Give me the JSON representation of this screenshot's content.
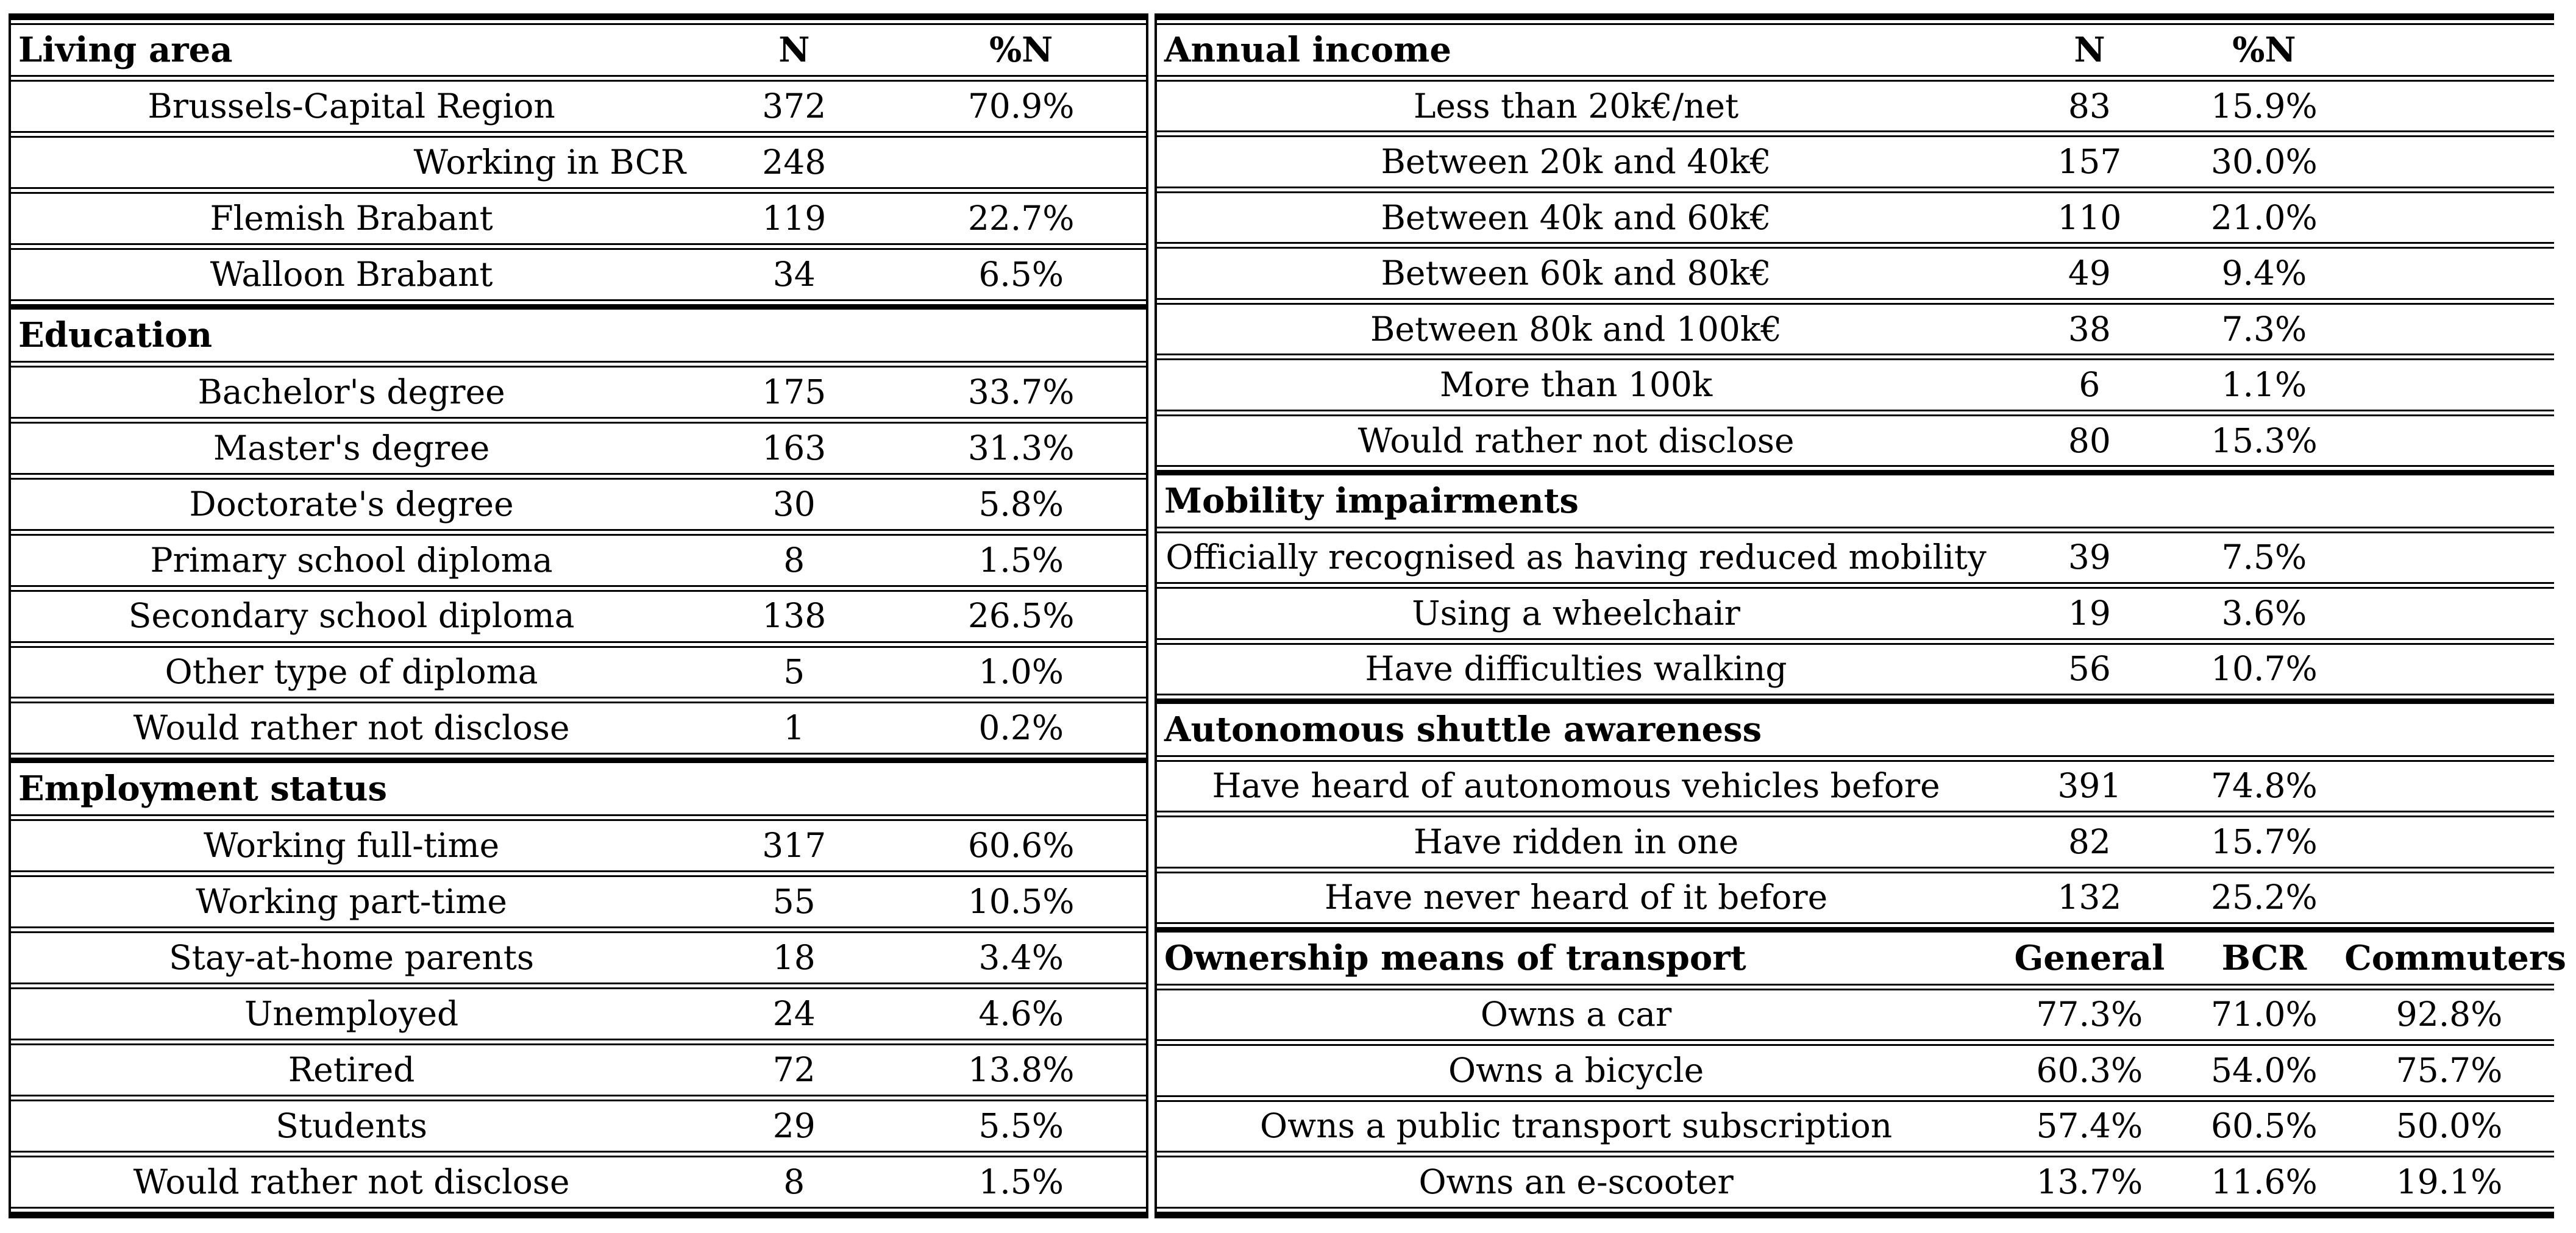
{
  "left_table": {
    "sections": [
      {
        "header": "Living area",
        "col_labels": [
          "N",
          "%N"
        ],
        "rows": [
          {
            "label": "Brussels-Capital Region",
            "values": [
              "372",
              "70.9%"
            ]
          },
          {
            "label": "Working in BCR",
            "values": [
              "248",
              ""
            ],
            "align": "right"
          },
          {
            "label": "Flemish Brabant",
            "values": [
              "119",
              "22.7%"
            ]
          },
          {
            "label": "Walloon Brabant",
            "values": [
              "34",
              "6.5%"
            ]
          }
        ]
      },
      {
        "header": "Education",
        "col_labels": [
          "",
          ""
        ],
        "rows": [
          {
            "label": "Bachelor's degree",
            "values": [
              "175",
              "33.7%"
            ]
          },
          {
            "label": "Master's degree",
            "values": [
              "163",
              "31.3%"
            ]
          },
          {
            "label": "Doctorate's degree",
            "values": [
              "30",
              "5.8%"
            ]
          },
          {
            "label": "Primary school diploma",
            "values": [
              "8",
              "1.5%"
            ]
          },
          {
            "label": "Secondary school diploma",
            "values": [
              "138",
              "26.5%"
            ]
          },
          {
            "label": "Other type of diploma",
            "values": [
              "5",
              "1.0%"
            ]
          },
          {
            "label": "Would rather not disclose",
            "values": [
              "1",
              "0.2%"
            ]
          }
        ]
      },
      {
        "header": "Employment status",
        "col_labels": [
          "",
          ""
        ],
        "rows": [
          {
            "label": "Working full-time",
            "values": [
              "317",
              "60.6%"
            ]
          },
          {
            "label": "Working part-time",
            "values": [
              "55",
              "10.5%"
            ]
          },
          {
            "label": "Stay-at-home parents",
            "values": [
              "18",
              "3.4%"
            ]
          },
          {
            "label": "Unemployed",
            "values": [
              "24",
              "4.6%"
            ]
          },
          {
            "label": "Retired",
            "values": [
              "72",
              "13.8%"
            ]
          },
          {
            "label": "Students",
            "values": [
              "29",
              "5.5%"
            ]
          },
          {
            "label": "Would rather not disclose",
            "values": [
              "8",
              "1.5%"
            ]
          }
        ]
      }
    ]
  },
  "right_table": {
    "sections": [
      {
        "header": "Annual income",
        "col_labels": [
          "N",
          "%N",
          ""
        ],
        "rows": [
          {
            "label": "Less than 20k€/net",
            "values": [
              "83",
              "15.9%",
              ""
            ]
          },
          {
            "label": "Between 20k and 40k€",
            "values": [
              "157",
              "30.0%",
              ""
            ]
          },
          {
            "label": "Between 40k and 60k€",
            "values": [
              "110",
              "21.0%",
              ""
            ]
          },
          {
            "label": "Between 60k and 80k€",
            "values": [
              "49",
              "9.4%",
              ""
            ]
          },
          {
            "label": "Between 80k and 100k€",
            "values": [
              "38",
              "7.3%",
              ""
            ]
          },
          {
            "label": "More than 100k",
            "values": [
              "6",
              "1.1%",
              ""
            ]
          },
          {
            "label": "Would rather not disclose",
            "values": [
              "80",
              "15.3%",
              ""
            ]
          }
        ]
      },
      {
        "header": "Mobility impairments",
        "col_labels": [
          "",
          "",
          ""
        ],
        "rows": [
          {
            "label": "Officially recognised as having reduced mobility",
            "values": [
              "39",
              "7.5%",
              ""
            ]
          },
          {
            "label": "Using a wheelchair",
            "values": [
              "19",
              "3.6%",
              ""
            ]
          },
          {
            "label": "Have difficulties walking",
            "values": [
              "56",
              "10.7%",
              ""
            ]
          }
        ]
      },
      {
        "header": "Autonomous shuttle awareness",
        "col_labels": [
          "",
          "",
          ""
        ],
        "rows": [
          {
            "label": "Have heard of autonomous vehicles before",
            "values": [
              "391",
              "74.8%",
              ""
            ]
          },
          {
            "label": "Have ridden in one",
            "values": [
              "82",
              "15.7%",
              ""
            ]
          },
          {
            "label": "Have never heard of it before",
            "values": [
              "132",
              "25.2%",
              ""
            ]
          }
        ]
      },
      {
        "header": "Ownership means of transport",
        "col_labels": [
          "General",
          "BCR",
          "Commuters"
        ],
        "rows": [
          {
            "label": "Owns a car",
            "values": [
              "77.3%",
              "71.0%",
              "92.8%"
            ]
          },
          {
            "label": "Owns a bicycle",
            "values": [
              "60.3%",
              "54.0%",
              "75.7%"
            ]
          },
          {
            "label": "Owns a public transport subscription",
            "values": [
              "57.4%",
              "60.5%",
              "50.0%"
            ]
          },
          {
            "label": "Owns an e-scooter",
            "values": [
              "13.7%",
              "11.6%",
              "19.1%"
            ]
          }
        ]
      }
    ]
  }
}
